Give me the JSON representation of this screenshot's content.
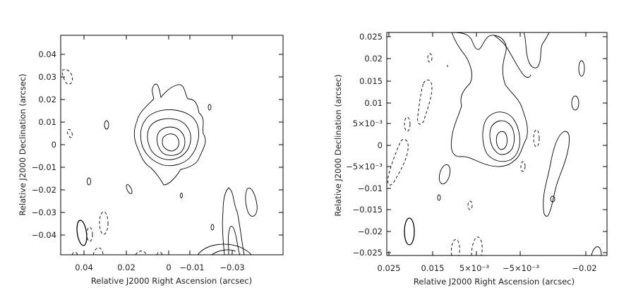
{
  "chart_data": [
    {
      "type": "contour",
      "xlabel": "Relative J2000 Right Ascension (arcsec)",
      "ylabel": "Relative J2000 Declination (arcsec)",
      "x_ticks": [
        "0.04",
        "0.02",
        "0",
        "−0.01",
        "−0.03"
      ],
      "y_ticks": [
        "0.04",
        "0.03",
        "0.02",
        "0.01",
        "0",
        "−0.01",
        "−0.02",
        "−0.03",
        "−0.04"
      ],
      "xlim": [
        0.047,
        -0.048
      ],
      "ylim": [
        -0.049,
        0.049
      ],
      "x_reversed": true,
      "grid": false
    },
    {
      "type": "contour",
      "xlabel": "Relative J2000 Right Ascension (arcsec)",
      "ylabel": "Relative J2000 Declination (arcsec)",
      "x_ticks": [
        "0.025",
        "0.015",
        "5×10⁻³",
        "−5×10⁻³",
        "−0.02"
      ],
      "y_ticks": [
        "0.025",
        "0.02",
        "0.015",
        "0.01",
        "5×10⁻³",
        "0",
        "−5×10⁻³",
        "−0.01",
        "−0.015",
        "−0.02",
        "−0.025"
      ],
      "xlim": [
        0.025,
        -0.025
      ],
      "ylim": [
        -0.025,
        0.025
      ],
      "x_reversed": true,
      "grid": false
    }
  ]
}
